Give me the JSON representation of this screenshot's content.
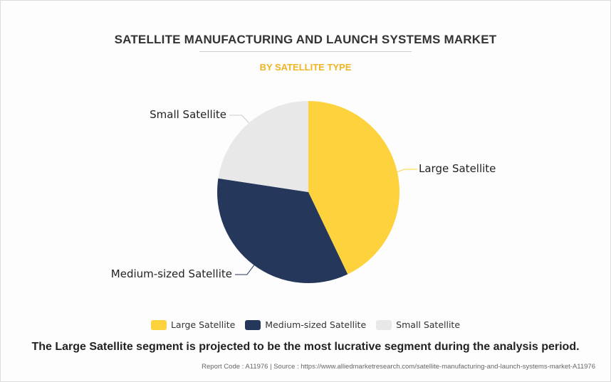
{
  "title": "SATELLITE MANUFACTURING AND LAUNCH SYSTEMS MARKET",
  "subtitle": "BY SATELLITE TYPE",
  "colors": {
    "subtitle": "#f0b323",
    "large": "#fdd23c",
    "medium": "#25385c",
    "small": "#e8e8e8"
  },
  "chart_data": {
    "type": "pie",
    "title": "SATELLITE MANUFACTURING AND LAUNCH SYSTEMS MARKET",
    "subtitle": "BY SATELLITE TYPE",
    "series": [
      {
        "name": "Large Satellite",
        "value": 42.9,
        "color": "#fdd23c"
      },
      {
        "name": "Medium-sized Satellite",
        "value": 34.5,
        "color": "#25385c"
      },
      {
        "name": "Small Satellite",
        "value": 22.6,
        "color": "#e8e8e8"
      }
    ],
    "legend": "bottom"
  },
  "legend": [
    {
      "label": "Large Satellite",
      "color": "#fdd23c"
    },
    {
      "label": "Medium-sized Satellite",
      "color": "#25385c"
    },
    {
      "label": "Small Satellite",
      "color": "#e8e8e8"
    }
  ],
  "headline": "The Large Satellite segment is projected to be the most lucrative segment during the analysis period.",
  "footer": "Report Code : A11976  |  Source : https://www.alliedmarketresearch.com/satellite-manufacturing-and-launch-systems-market-A11976"
}
